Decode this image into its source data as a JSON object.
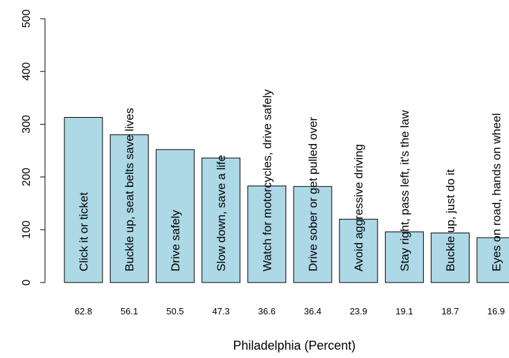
{
  "chart_data": {
    "type": "bar",
    "title": "",
    "xlabel": "Philadelphia (Percent)",
    "ylabel": "",
    "ylim": [
      0,
      500
    ],
    "yticks": [
      0,
      100,
      200,
      300,
      400,
      500
    ],
    "grid": false,
    "bar_color": "#ADD8E6",
    "categories": [
      "62.8",
      "56.1",
      "50.5",
      "47.3",
      "36.6",
      "36.4",
      "23.9",
      "19.1",
      "18.7",
      "16.9"
    ],
    "bar_labels": [
      "Click it or ticket",
      "Buckle up, seat belts save lives",
      "Drive safely",
      "Slow down, save a life",
      "Watch for motorcycles, drive safely",
      "Drive sober or get pulled over",
      "Avoid aggressive driving",
      "Stay right, pass left, it's the law",
      "Buckle up, just do it",
      "Eyes on road, hands on wheel"
    ],
    "values": [
      313,
      280,
      252,
      236,
      183,
      182,
      120,
      96,
      94,
      85
    ]
  }
}
